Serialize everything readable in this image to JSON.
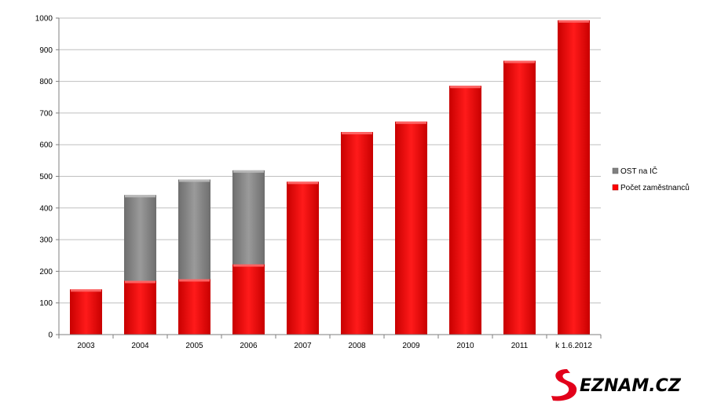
{
  "chart_data": {
    "type": "bar",
    "stacked": true,
    "categories": [
      "2003",
      "2004",
      "2005",
      "2006",
      "2007",
      "2008",
      "2009",
      "2010",
      "2011",
      "k 1.6.2012"
    ],
    "series": [
      {
        "name": "Počet zaměstnanců",
        "color": "#ff0000",
        "values": [
          143,
          170,
          175,
          222,
          483,
          640,
          673,
          786,
          865,
          993
        ]
      },
      {
        "name": "OST na IČ",
        "color": "#808080",
        "values": [
          0,
          271,
          315,
          297,
          0,
          0,
          0,
          0,
          0,
          0
        ]
      }
    ],
    "legend_order": [
      "OST na IČ",
      "Počet zaměstnanců"
    ],
    "yticks": [
      "0",
      "100",
      "200",
      "300",
      "400",
      "500",
      "600",
      "700",
      "800",
      "900",
      "1000"
    ],
    "ylim": [
      0,
      1000
    ],
    "grid": true,
    "legend": "right"
  },
  "logo": {
    "text": "EZNAM.CZ",
    "accent_color": "#e2001a"
  }
}
